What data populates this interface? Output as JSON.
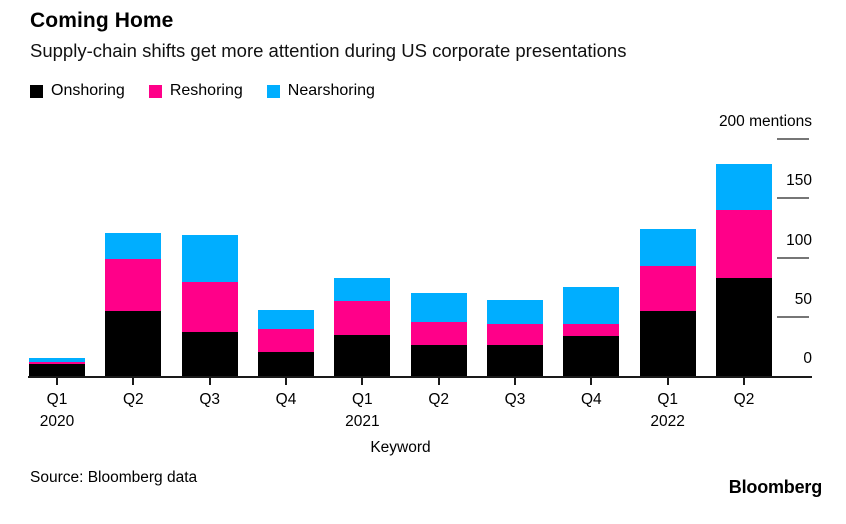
{
  "header": {
    "title": "Coming Home",
    "subtitle": "Supply-chain shifts get more attention during US corporate presentations"
  },
  "legend": [
    {
      "label": "Onshoring",
      "color": "#000000"
    },
    {
      "label": "Reshoring",
      "color": "#ff0089"
    },
    {
      "label": "Nearshoring",
      "color": "#00aeff"
    }
  ],
  "chart_data": {
    "type": "bar",
    "stacked": true,
    "categories": [
      "Q1",
      "Q2",
      "Q3",
      "Q4",
      "Q1",
      "Q2",
      "Q3",
      "Q4",
      "Q1",
      "Q2"
    ],
    "category_years": {
      "0": "2020",
      "4": "2021",
      "8": "2022"
    },
    "series": [
      {
        "name": "Onshoring",
        "color": "#000000",
        "values": [
          10,
          55,
          37,
          20,
          35,
          26,
          26,
          34,
          55,
          83
        ]
      },
      {
        "name": "Reshoring",
        "color": "#ff0089",
        "values": [
          2,
          44,
          42,
          20,
          28,
          20,
          18,
          10,
          38,
          57
        ]
      },
      {
        "name": "Nearshoring",
        "color": "#00aeff",
        "values": [
          3,
          22,
          40,
          16,
          20,
          24,
          20,
          31,
          31,
          39
        ]
      }
    ],
    "xlabel": "Keyword",
    "ylabel": "mentions",
    "ylim": [
      0,
      200
    ],
    "y_axis": {
      "side": "right",
      "max_label": "200 mentions",
      "ticks": [
        200,
        150,
        100,
        50,
        0
      ]
    },
    "grid": false,
    "legend_position": "top"
  },
  "footer": {
    "source": "Source: Bloomberg data",
    "logo": "Bloomberg"
  }
}
